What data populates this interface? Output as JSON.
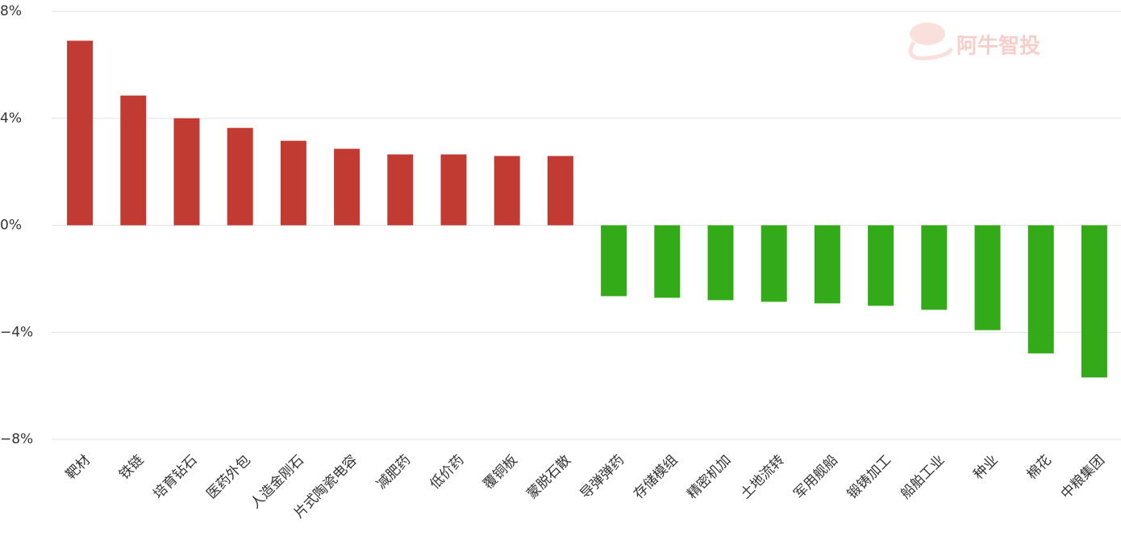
{
  "chart_data": {
    "type": "bar",
    "watermark": "阿牛智投",
    "categories": [
      "靶材",
      "铁链",
      "培育钻石",
      "医药外包",
      "人造金刚石",
      "片式陶瓷电容",
      "减肥药",
      "低价药",
      "覆铜板",
      "蒙脱石散",
      "导弹弹药",
      "存储模组",
      "精密机加",
      "土地流转",
      "军用舰船",
      "锻铸加工",
      "船舶工业",
      "种业",
      "棉花",
      "中粮集团"
    ],
    "values": [
      6.9,
      4.85,
      4.0,
      3.64,
      3.16,
      2.86,
      2.65,
      2.65,
      2.59,
      2.59,
      -2.65,
      -2.71,
      -2.8,
      -2.86,
      -2.92,
      -3.01,
      -3.16,
      -3.92,
      -4.79,
      -5.69
    ],
    "positive_color": "#c23b33",
    "negative_color": "#33aa17",
    "ylim": [
      -8,
      8
    ],
    "yticks": [
      {
        "value": -8,
        "label": "−8%"
      },
      {
        "value": -4,
        "label": "−4%"
      },
      {
        "value": 0,
        "label": "0%"
      },
      {
        "value": 4,
        "label": "4%"
      },
      {
        "value": 8,
        "label": "8%"
      }
    ],
    "grid": true
  }
}
